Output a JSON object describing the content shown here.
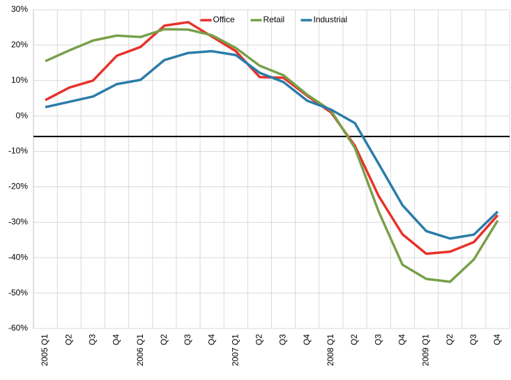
{
  "chart_data": {
    "type": "line",
    "categories": [
      "2005 Q1",
      "Q2",
      "Q3",
      "Q4",
      "2006 Q1",
      "Q2",
      "Q3",
      "Q4",
      "2007 Q1",
      "Q2",
      "Q3",
      "Q4",
      "2008 Q1",
      "Q2",
      "Q3",
      "Q4",
      "2009 Q1",
      "Q2",
      "Q3",
      "Q4"
    ],
    "series": [
      {
        "name": "Office",
        "color": "#e8312a",
        "values": [
          4.5,
          8,
          10,
          17,
          19.5,
          25.5,
          26.5,
          22.4,
          18.3,
          11,
          10.8,
          5.7,
          1,
          -8.4,
          -22.6,
          -33.4,
          -38.9,
          -38.3,
          -35.6,
          -28
        ]
      },
      {
        "name": "Retail",
        "color": "#77a04a",
        "values": [
          15.5,
          18.5,
          21.3,
          22.7,
          22.3,
          24.5,
          24.4,
          22.8,
          19.2,
          14.2,
          11.5,
          6,
          1.5,
          -9,
          -27,
          -42,
          -46,
          -46.8,
          -40.5,
          -29.5
        ]
      },
      {
        "name": "Industrial",
        "color": "#2a7ca8",
        "values": [
          2.5,
          4,
          5.5,
          9,
          10.2,
          15.8,
          17.8,
          18.3,
          17.2,
          12.2,
          9.6,
          4.3,
          1.8,
          -2,
          -13.5,
          -25.2,
          -32.5,
          -34.6,
          -33.5,
          -27
        ]
      }
    ],
    "ylim": [
      -60,
      30
    ],
    "yticks": [
      {
        "value": -60,
        "label": "-60%"
      },
      {
        "value": -50,
        "label": "-50%"
      },
      {
        "value": -40,
        "label": "-40%"
      },
      {
        "value": -30,
        "label": "-30%"
      },
      {
        "value": -20,
        "label": "-20%"
      },
      {
        "value": -10,
        "label": "-10%"
      },
      {
        "value": 0,
        "label": "0%"
      },
      {
        "value": 10,
        "label": "10%"
      },
      {
        "value": 20,
        "label": "20%"
      },
      {
        "value": 30,
        "label": "30%"
      }
    ],
    "reference_line": -5.8,
    "grid": true,
    "legend": "top"
  }
}
